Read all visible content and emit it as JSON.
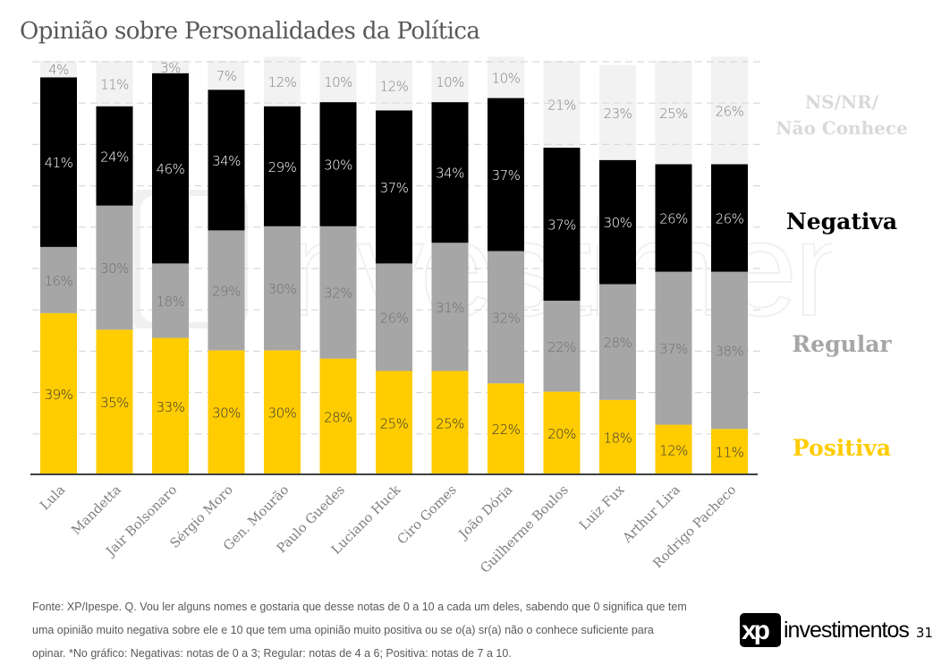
{
  "title": "Opinião sobre Personalidades da Política",
  "legend": {
    "ns_line1": "NS/NR/",
    "ns_line2": "Não Conhece",
    "negativa": "Negativa",
    "regular": "Regular",
    "positiva": "Positiva"
  },
  "colors": {
    "positiva": "#ffcc00",
    "regular": "#a6a6a6",
    "negativa": "#000000",
    "ns": "#f2f2f2"
  },
  "footer": {
    "lines": [
      "Fonte: XP/Ipespe. Q. Vou ler alguns nomes e gostaria que desse notas de 0 a 10 a cada um deles, sabendo que 0 significa que tem",
      "uma opinião muito negativa sobre ele e 10 que tem uma opinião muito positiva ou se o(a) sr(a) não o conhece suficiente para",
      "opinar. *No gráfico: Negativas: notas de 0 a 3; Regular: notas de 4 a 6; Positiva: notas de 7 a 10."
    ]
  },
  "logo": {
    "mark": "xp",
    "text": "investimentos"
  },
  "page_number": "31",
  "watermark_text": "xp investimentos",
  "chart_data": {
    "type": "bar",
    "stacked": true,
    "title": "Opinião sobre Personalidades da Política",
    "xlabel": "",
    "ylabel": "",
    "ylim": [
      0,
      100
    ],
    "grid": true,
    "legend_position": "right",
    "unit": "%",
    "categories": [
      "Lula",
      "Mandetta",
      "Jair Bolsonaro",
      "Sérgio Moro",
      "Gen. Mourão",
      "Paulo Guedes",
      "Luciano Huck",
      "Ciro Gomes",
      "João Dória",
      "Guilherme Boulos",
      "Luiz Fux",
      "Arthur Lira",
      "Rodrigo Pacheco"
    ],
    "series": [
      {
        "name": "Positiva",
        "color": "#ffcc00",
        "label_color": "#333333",
        "values": [
          39,
          35,
          33,
          30,
          30,
          28,
          25,
          25,
          22,
          20,
          18,
          12,
          11
        ]
      },
      {
        "name": "Regular",
        "color": "#a6a6a6",
        "label_color": "#6e6e6e",
        "values": [
          16,
          30,
          18,
          29,
          30,
          32,
          26,
          31,
          32,
          22,
          28,
          37,
          38
        ]
      },
      {
        "name": "Negativa",
        "color": "#000000",
        "label_color": "#ffffff",
        "values": [
          41,
          24,
          46,
          34,
          29,
          30,
          37,
          34,
          37,
          37,
          30,
          26,
          26
        ]
      },
      {
        "name": "NS/NR/Não Conhece",
        "color": "#f2f2f2",
        "label_color": "#7f7f7f",
        "values": [
          4,
          11,
          3,
          7,
          12,
          10,
          12,
          10,
          10,
          21,
          23,
          25,
          26
        ]
      }
    ]
  }
}
